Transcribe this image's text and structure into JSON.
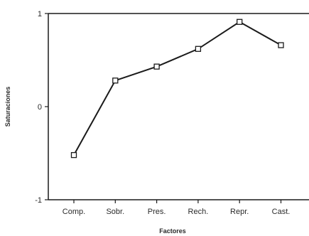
{
  "chart_data": {
    "type": "line",
    "title": "",
    "xlabel": "Factores",
    "ylabel": "Saturaciones",
    "categories": [
      "Comp.",
      "Sobr.",
      "Pres.",
      "Rech.",
      "Repr.",
      "Cast."
    ],
    "series": [
      {
        "values": [
          -0.52,
          0.28,
          0.43,
          0.62,
          0.91,
          0.66
        ]
      }
    ],
    "ylim": [
      -1,
      1
    ],
    "yticks": [
      -1,
      0,
      1
    ],
    "ytick_labels": [
      "-1",
      "0",
      "1"
    ],
    "grid": false,
    "legend": "none",
    "marker": "square",
    "colors": {
      "line": "#1a1a1a",
      "axis": "#1a1a1a",
      "marker_fill": "#ffffff"
    }
  }
}
